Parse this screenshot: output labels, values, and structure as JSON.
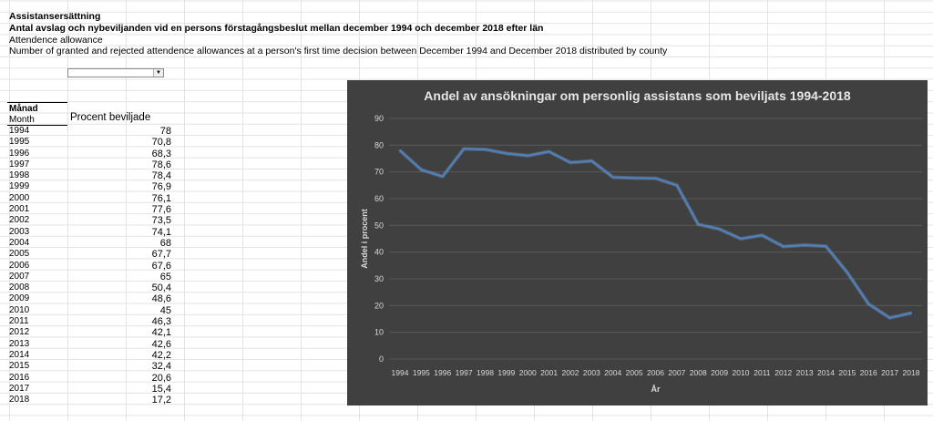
{
  "sheet": {
    "header": {
      "line1": "Assistansersättning",
      "line2": "Antal avslag och nybeviljanden vid en persons förstagångsbeslut mellan december 1994 och december 2018 efter län",
      "line3": "Attendence allowance",
      "line4": "Number of granted and rejected attendence allowances at a person's first time decision between December 1994 and December 2018 distributed by county"
    },
    "filter": {
      "selected": "",
      "arrow_icon": "dropdown-arrow-icon"
    },
    "table": {
      "col1_header_sv": "Månad",
      "col1_header_en": "Month",
      "col2_header": "Procent beviljade",
      "rows": [
        {
          "year": "1994",
          "value": "78"
        },
        {
          "year": "1995",
          "value": "70,8"
        },
        {
          "year": "1996",
          "value": "68,3"
        },
        {
          "year": "1997",
          "value": "78,6"
        },
        {
          "year": "1998",
          "value": "78,4"
        },
        {
          "year": "1999",
          "value": "76,9"
        },
        {
          "year": "2000",
          "value": "76,1"
        },
        {
          "year": "2001",
          "value": "77,6"
        },
        {
          "year": "2002",
          "value": "73,5"
        },
        {
          "year": "2003",
          "value": "74,1"
        },
        {
          "year": "2004",
          "value": "68"
        },
        {
          "year": "2005",
          "value": "67,7"
        },
        {
          "year": "2006",
          "value": "67,6"
        },
        {
          "year": "2007",
          "value": "65"
        },
        {
          "year": "2008",
          "value": "50,4"
        },
        {
          "year": "2009",
          "value": "48,6"
        },
        {
          "year": "2010",
          "value": "45"
        },
        {
          "year": "2011",
          "value": "46,3"
        },
        {
          "year": "2012",
          "value": "42,1"
        },
        {
          "year": "2013",
          "value": "42,6"
        },
        {
          "year": "2014",
          "value": "42,2"
        },
        {
          "year": "2015",
          "value": "32,4"
        },
        {
          "year": "2016",
          "value": "20,6"
        },
        {
          "year": "2017",
          "value": "15,4"
        },
        {
          "year": "2018",
          "value": "17,2"
        }
      ]
    }
  },
  "chart_data": {
    "type": "line",
    "title": "Andel av ansökningar om personlig assistans som beviljats 1994-2018",
    "xlabel": "År",
    "ylabel": "Andel i procent",
    "ylim": [
      0,
      90
    ],
    "yticks": [
      0,
      10,
      20,
      30,
      40,
      50,
      60,
      70,
      80,
      90
    ],
    "grid": true,
    "legend": "none",
    "x": [
      "1994",
      "1995",
      "1996",
      "1997",
      "1998",
      "1999",
      "2000",
      "2001",
      "2002",
      "2003",
      "2004",
      "2005",
      "2006",
      "2007",
      "2008",
      "2009",
      "2010",
      "2011",
      "2012",
      "2013",
      "2014",
      "2015",
      "2016",
      "2017",
      "2018"
    ],
    "series": [
      {
        "values": [
          78,
          70.8,
          68.3,
          78.6,
          78.4,
          76.9,
          76.1,
          77.6,
          73.5,
          74.1,
          68,
          67.7,
          67.6,
          65,
          50.4,
          48.6,
          45,
          46.3,
          42.1,
          42.6,
          42.2,
          32.4,
          20.6,
          15.4,
          17.2
        ]
      }
    ],
    "colors": {
      "background": "#404040",
      "line": "#4f81bd",
      "grid": "#595959",
      "text": "#d9d9d9",
      "title": "#e6e6e6"
    }
  }
}
